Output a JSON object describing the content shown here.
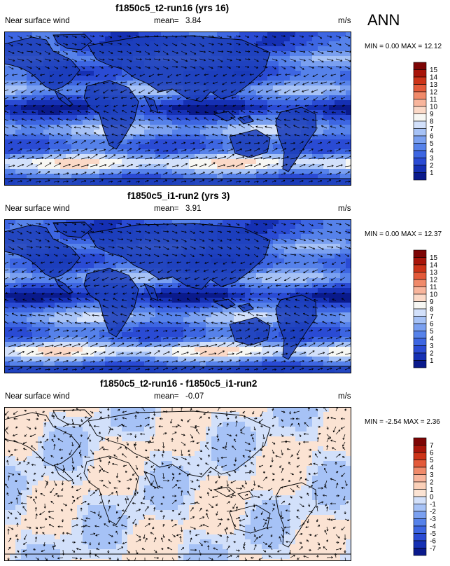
{
  "season": "ANN",
  "units": "m/s",
  "panels": [
    {
      "title": "f1850c5_t2-run16 (yrs 16)",
      "variable": "Near surface wind",
      "mean_label": "mean=",
      "mean": "3.84",
      "min_label": "MIN =",
      "min": "0.00",
      "max_label": "MAX =",
      "max": "12.12"
    },
    {
      "title": "f1850c5_i1-run2 (yrs 3)",
      "variable": "Near surface wind",
      "mean_label": "mean=",
      "mean": "3.91",
      "min_label": "MIN =",
      "min": "0.00",
      "max_label": "MAX =",
      "max": "12.37"
    },
    {
      "title": "f1850c5_t2-run16 - f1850c5_i1-run2",
      "variable": "Near surface wind",
      "mean_label": "mean=",
      "mean": "-0.07",
      "min_label": "MIN =",
      "min": "-2.54",
      "max_label": "MAX =",
      "max": "2.36"
    }
  ],
  "chart_data": [
    {
      "type": "heatmap",
      "title": "f1850c5_t2-run16 (yrs 16)",
      "field": "Near surface wind speed with wind vectors",
      "units": "m/s",
      "colorbar_labels": [
        "1",
        "2",
        "3",
        "4",
        "5",
        "6",
        "7",
        "8",
        "9",
        "10",
        "11",
        "12",
        "13",
        "14",
        "15"
      ],
      "colorbar_colors": [
        "#0a1a8c",
        "#1530b4",
        "#2a4bd4",
        "#3d66e2",
        "#5682ea",
        "#7aa0f0",
        "#a6c2f6",
        "#d2e0fa",
        "#f7f7f3",
        "#fbd9c7",
        "#f8b59c",
        "#f08a6a",
        "#e35a3a",
        "#cc3318",
        "#a8150a",
        "#7d0505"
      ],
      "min": 0.0,
      "max": 12.12,
      "mean": 3.84
    },
    {
      "type": "heatmap",
      "title": "f1850c5_i1-run2 (yrs 3)",
      "field": "Near surface wind speed with wind vectors",
      "units": "m/s",
      "colorbar_labels": [
        "1",
        "2",
        "3",
        "4",
        "5",
        "6",
        "7",
        "8",
        "9",
        "10",
        "11",
        "12",
        "13",
        "14",
        "15"
      ],
      "colorbar_colors": [
        "#0a1a8c",
        "#1530b4",
        "#2a4bd4",
        "#3d66e2",
        "#5682ea",
        "#7aa0f0",
        "#a6c2f6",
        "#d2e0fa",
        "#f7f7f3",
        "#fbd9c7",
        "#f8b59c",
        "#f08a6a",
        "#e35a3a",
        "#cc3318",
        "#a8150a",
        "#7d0505"
      ],
      "min": 0.0,
      "max": 12.37,
      "mean": 3.91
    },
    {
      "type": "heatmap",
      "title": "f1850c5_t2-run16 - f1850c5_i1-run2",
      "field": "Near surface wind difference with wind vectors",
      "units": "m/s",
      "colorbar_labels": [
        "-7",
        "-6",
        "-5",
        "-4",
        "-3",
        "-2",
        "-1",
        "0",
        "1",
        "2",
        "3",
        "4",
        "5",
        "6",
        "7"
      ],
      "colorbar_colors": [
        "#0a1a8c",
        "#1530b4",
        "#2a4bd4",
        "#3d66e2",
        "#5682ea",
        "#7aa0f0",
        "#a6c2f6",
        "#d2e0fa",
        "#fbe3d3",
        "#fbd0b8",
        "#f8b59c",
        "#f08a6a",
        "#e35a3a",
        "#cc3318",
        "#a8150a",
        "#7d0505"
      ],
      "min": -2.54,
      "max": 2.36,
      "mean": -0.07
    }
  ]
}
